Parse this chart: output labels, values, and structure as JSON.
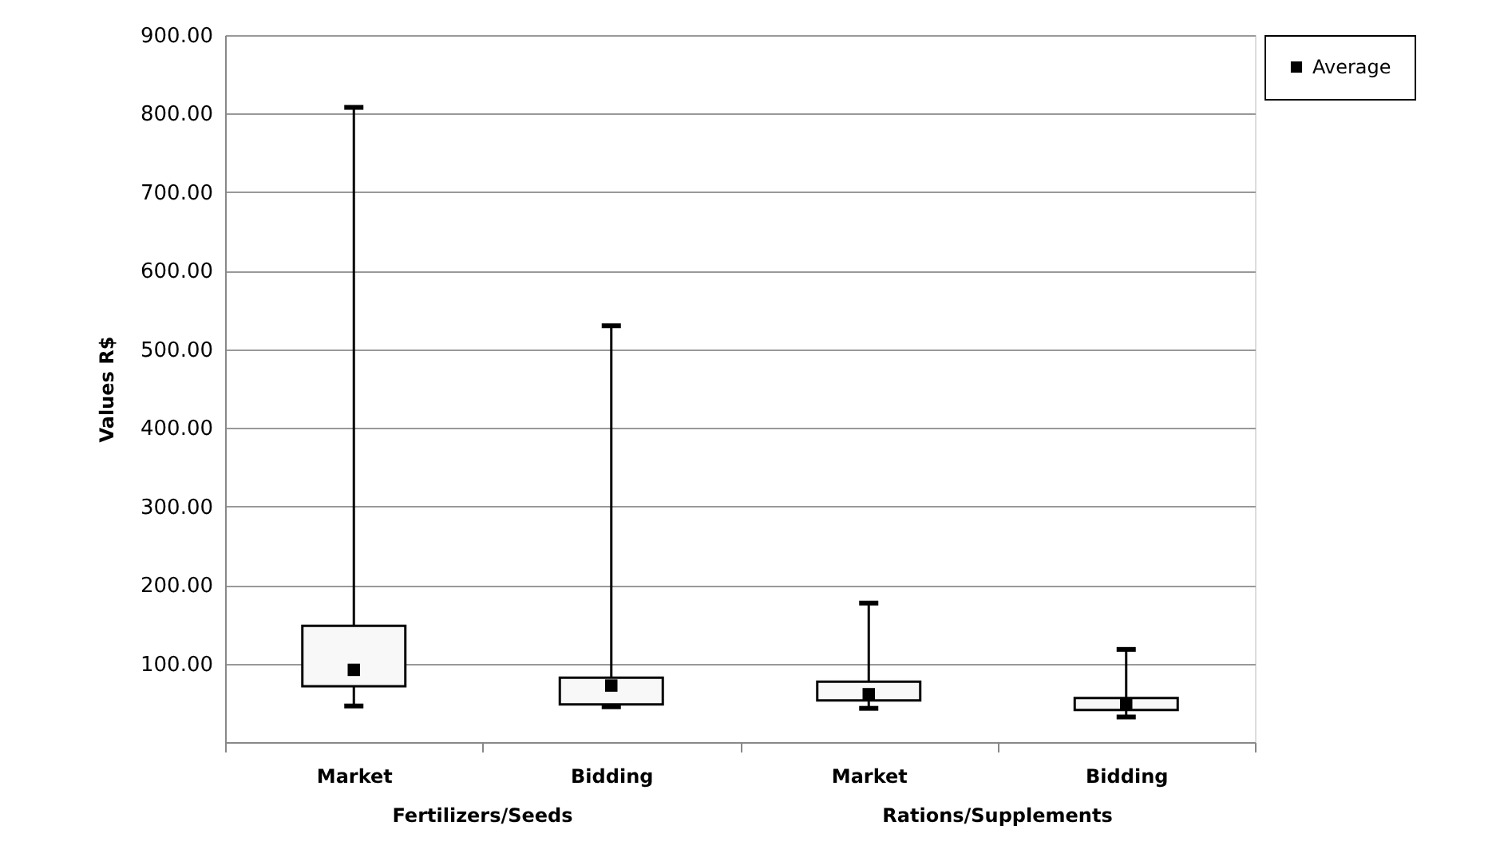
{
  "chart_data": {
    "type": "box",
    "ylabel": "Values R$",
    "categories": [
      "Market",
      "Bidding",
      "Market",
      "Bidding"
    ],
    "annotations": [
      "Fertilizers/Seeds",
      "Rations/Supplements"
    ],
    "series": [
      {
        "name": "Average",
        "color": "#000000",
        "boxes": [
          {
            "low": 46,
            "q1": 71,
            "median": null,
            "q3": 148,
            "high": 808,
            "mean": 92
          },
          {
            "low": 45,
            "q1": 48,
            "median": null,
            "q3": 82,
            "high": 530,
            "mean": 72
          },
          {
            "low": 43,
            "q1": 53,
            "median": null,
            "q3": 77,
            "high": 177,
            "mean": 61
          },
          {
            "low": 32,
            "q1": 41,
            "median": null,
            "q3": 56,
            "high": 118,
            "mean": 49
          }
        ]
      }
    ],
    "ylim": [
      0,
      900
    ],
    "yticks": [
      {
        "value": 100,
        "label": "100.00"
      },
      {
        "value": 200,
        "label": "200.00"
      },
      {
        "value": 300,
        "label": "300.00"
      },
      {
        "value": 400,
        "label": "400.00"
      },
      {
        "value": 500,
        "label": "500.00"
      },
      {
        "value": 600,
        "label": "600.00"
      },
      {
        "value": 700,
        "label": "700.00"
      },
      {
        "value": 800,
        "label": "800.00"
      },
      {
        "value": 900,
        "label": "900.00"
      }
    ],
    "grid": "y",
    "legend": "right",
    "marker": "square"
  }
}
